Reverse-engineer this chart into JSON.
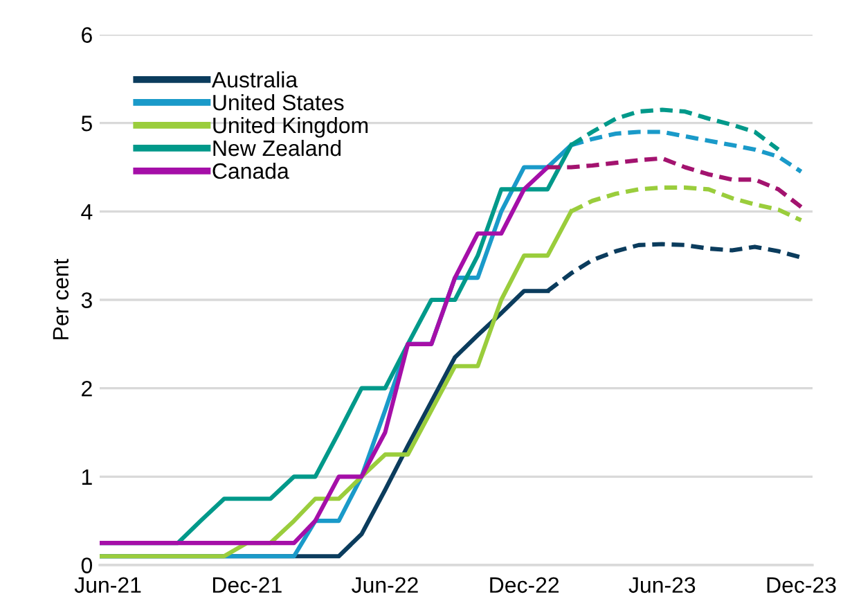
{
  "chart_data": {
    "type": "line",
    "ylabel": "Per cent",
    "xlim": [
      "2021-05-21",
      "2023-12-16"
    ],
    "xticks": [
      {
        "value": "2021-06-01",
        "label": "Jun-21"
      },
      {
        "value": "2021-12-01",
        "label": "Dec-21"
      },
      {
        "value": "2022-06-01",
        "label": "Jun-22"
      },
      {
        "value": "2022-12-01",
        "label": "Dec-22"
      },
      {
        "value": "2023-06-01",
        "label": "Jun-23"
      },
      {
        "value": "2023-12-01",
        "label": "Dec-23"
      }
    ],
    "ylim": [
      0,
      6
    ],
    "yticks": [
      0,
      1,
      2,
      3,
      4,
      5,
      6
    ],
    "grid": "y",
    "legend": "top left",
    "line_style": "solid",
    "series": [
      {
        "name": "Australia",
        "color": "#0b3c5d",
        "x": [
          "2021-05-21",
          "2022-04-01",
          "2022-05-01",
          "2022-06-01",
          "2022-07-01",
          "2022-08-01",
          "2022-09-01",
          "2022-10-01",
          "2022-11-01",
          "2022-12-01",
          "2023-01-01"
        ],
        "values": [
          0.1,
          0.1,
          0.35,
          0.85,
          1.35,
          1.85,
          2.35,
          2.6,
          2.85,
          3.1,
          3.1
        ]
      },
      {
        "name": "United States",
        "color": "#1a9ac9",
        "x": [
          "2021-05-21",
          "2022-02-01",
          "2022-03-01",
          "2022-04-01",
          "2022-05-01",
          "2022-06-01",
          "2022-07-01",
          "2022-08-01",
          "2022-09-01",
          "2022-10-01",
          "2022-11-01",
          "2022-12-01",
          "2023-01-01",
          "2023-02-01"
        ],
        "values": [
          0.1,
          0.1,
          0.5,
          0.5,
          1.0,
          1.75,
          2.5,
          2.5,
          3.25,
          3.25,
          4.0,
          4.5,
          4.5,
          4.75
        ]
      },
      {
        "name": "United Kingdom",
        "color": "#9acd3c",
        "x": [
          "2021-05-21",
          "2021-11-01",
          "2021-12-01",
          "2022-01-01",
          "2022-02-01",
          "2022-03-01",
          "2022-04-01",
          "2022-05-01",
          "2022-06-01",
          "2022-07-01",
          "2022-08-01",
          "2022-09-01",
          "2022-10-01",
          "2022-11-01",
          "2022-12-01",
          "2023-01-01",
          "2023-02-01"
        ],
        "values": [
          0.1,
          0.1,
          0.25,
          0.25,
          0.5,
          0.75,
          0.75,
          1.0,
          1.25,
          1.25,
          1.75,
          2.25,
          2.25,
          3.0,
          3.5,
          3.5,
          4.0
        ]
      },
      {
        "name": "New Zealand",
        "color": "#00998a",
        "x": [
          "2021-05-21",
          "2021-09-01",
          "2021-10-01",
          "2021-11-01",
          "2021-12-01",
          "2022-01-01",
          "2022-02-01",
          "2022-03-01",
          "2022-04-01",
          "2022-05-01",
          "2022-06-01",
          "2022-07-01",
          "2022-08-01",
          "2022-09-01",
          "2022-10-01",
          "2022-11-01",
          "2022-12-01",
          "2023-01-01",
          "2023-02-01"
        ],
        "values": [
          0.25,
          0.25,
          0.5,
          0.75,
          0.75,
          0.75,
          1.0,
          1.0,
          1.5,
          2.0,
          2.0,
          2.5,
          3.0,
          3.0,
          3.5,
          4.25,
          4.25,
          4.25,
          4.75
        ]
      },
      {
        "name": "Canada",
        "color": "#a50fa8",
        "x": [
          "2021-05-21",
          "2022-02-01",
          "2022-03-01",
          "2022-04-01",
          "2022-05-01",
          "2022-06-01",
          "2022-07-01",
          "2022-08-01",
          "2022-09-01",
          "2022-10-01",
          "2022-11-01",
          "2022-12-01",
          "2023-01-01"
        ],
        "values": [
          0.25,
          0.25,
          0.5,
          1.0,
          1.0,
          1.5,
          2.5,
          2.5,
          3.25,
          3.75,
          3.75,
          4.25,
          4.5
        ]
      },
      {
        "color": "#0b3c5d",
        "line_style": "dashed",
        "x": [
          "2023-01-01",
          "2023-02-01",
          "2023-03-01",
          "2023-04-01",
          "2023-05-01",
          "2023-06-01",
          "2023-07-01",
          "2023-08-01",
          "2023-09-01",
          "2023-10-01",
          "2023-11-01",
          "2023-12-01"
        ],
        "values": [
          3.1,
          3.3,
          3.45,
          3.55,
          3.62,
          3.63,
          3.62,
          3.58,
          3.56,
          3.6,
          3.55,
          3.48
        ]
      },
      {
        "color": "#1a9ac9",
        "line_style": "dashed",
        "x": [
          "2023-02-01",
          "2023-03-01",
          "2023-04-01",
          "2023-05-01",
          "2023-06-01",
          "2023-07-01",
          "2023-08-01",
          "2023-09-01",
          "2023-10-01",
          "2023-11-01",
          "2023-12-01"
        ],
        "values": [
          4.75,
          4.82,
          4.88,
          4.9,
          4.9,
          4.85,
          4.8,
          4.75,
          4.7,
          4.62,
          4.45
        ]
      },
      {
        "color": "#9acd3c",
        "line_style": "dashed",
        "x": [
          "2023-02-01",
          "2023-03-01",
          "2023-04-01",
          "2023-05-01",
          "2023-06-01",
          "2023-07-01",
          "2023-08-01",
          "2023-09-01",
          "2023-10-01",
          "2023-11-01",
          "2023-12-01"
        ],
        "values": [
          4.0,
          4.12,
          4.2,
          4.25,
          4.27,
          4.27,
          4.25,
          4.15,
          4.08,
          4.02,
          3.9
        ]
      },
      {
        "color": "#00998a",
        "line_style": "dashed",
        "x": [
          "2023-02-01",
          "2023-03-01",
          "2023-04-01",
          "2023-05-01",
          "2023-06-01",
          "2023-07-01",
          "2023-08-01",
          "2023-09-01",
          "2023-10-01",
          "2023-11-01"
        ],
        "values": [
          4.75,
          4.9,
          5.05,
          5.13,
          5.15,
          5.13,
          5.05,
          4.98,
          4.9,
          4.7
        ]
      },
      {
        "color": "#a3136f",
        "line_style": "dashed",
        "x": [
          "2023-01-01",
          "2023-02-01",
          "2023-03-01",
          "2023-04-01",
          "2023-05-01",
          "2023-06-01",
          "2023-07-01",
          "2023-08-01",
          "2023-09-01",
          "2023-10-01",
          "2023-11-01",
          "2023-12-01"
        ],
        "values": [
          4.5,
          4.5,
          4.52,
          4.55,
          4.58,
          4.6,
          4.5,
          4.42,
          4.36,
          4.36,
          4.25,
          4.05
        ]
      }
    ]
  }
}
